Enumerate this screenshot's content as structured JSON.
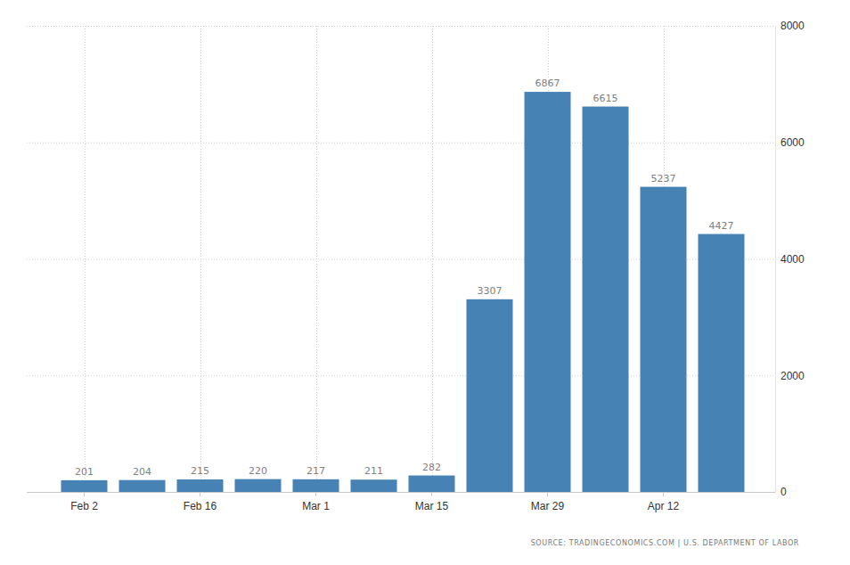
{
  "chart_data": {
    "type": "bar",
    "categories": [
      "Feb 2",
      null,
      "Feb 16",
      null,
      "Mar 1",
      null,
      "Mar 15",
      null,
      "Mar 29",
      null,
      "Apr 12",
      null
    ],
    "values": [
      201,
      204,
      215,
      220,
      217,
      211,
      282,
      3307,
      6867,
      6615,
      5237,
      4427
    ],
    "color": "#4682b4",
    "ylim": [
      0,
      8000
    ],
    "yticks": [
      0,
      2000,
      4000,
      6000,
      8000
    ],
    "grid": true,
    "data_labels": true,
    "annotations": [
      "SOURCE: TRADINGECONOMICS.COM | U.S. DEPARTMENT OF LABOR"
    ]
  }
}
